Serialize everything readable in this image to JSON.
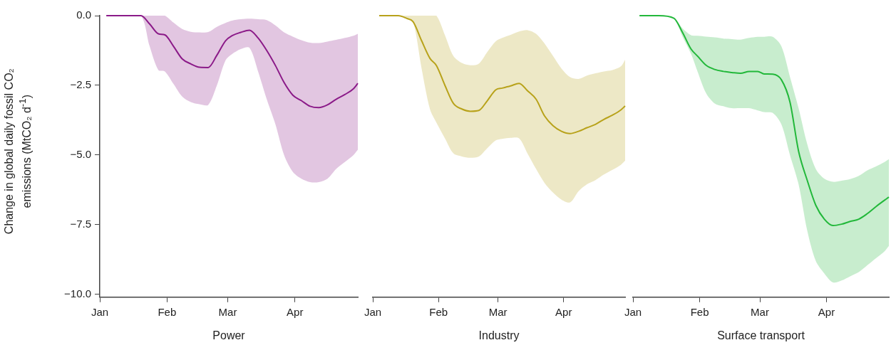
{
  "chart_data": [
    {
      "type": "line",
      "xlabel": "Power",
      "ylabel": "Change in global daily fossil CO₂ emissions (MtCO₂ d$^{-1}$)",
      "xlim": [
        "--01-01",
        "--04-30"
      ],
      "xticks": [
        {
          "value": "--01-01",
          "label": "Jan"
        },
        {
          "value": "--02-01",
          "label": "Feb"
        },
        {
          "value": "--03-01",
          "label": "Mar"
        },
        {
          "value": "--04-01",
          "label": "Apr"
        }
      ],
      "ylim": [
        -10.1,
        0
      ],
      "yticks": [
        {
          "value": 0,
          "label": "0.0"
        },
        {
          "value": -2.5,
          "label": "−2.5"
        },
        {
          "value": -5,
          "label": "−5.0"
        },
        {
          "value": -7.5,
          "label": "−7.5"
        },
        {
          "value": -10,
          "label": "−10.0"
        }
      ],
      "x": [
        "--01-04",
        "--01-13",
        "--01-20",
        "--01-24",
        "--01-28",
        "--01-31",
        "--02-04",
        "--02-08",
        "--02-12",
        "--02-16",
        "--02-20",
        "--02-24",
        "--02-28",
        "--03-03",
        "--03-07",
        "--03-11",
        "--03-15",
        "--03-19",
        "--03-23",
        "--03-27",
        "--03-31",
        "--04-04",
        "--04-08",
        "--04-12",
        "--04-16",
        "--04-20",
        "--04-24",
        "--04-28",
        "--04-30"
      ],
      "series": [
        {
          "color": "#8b1a89",
          "values": [
            0,
            0,
            0,
            -0.3,
            -0.65,
            -0.69,
            -1.1,
            -1.55,
            -1.73,
            -1.85,
            -1.86,
            -1.42,
            -0.9,
            -0.72,
            -0.6,
            -0.52,
            -0.8,
            -1.25,
            -1.79,
            -2.4,
            -2.85,
            -3.05,
            -3.25,
            -3.3,
            -3.2,
            -3.0,
            -2.83,
            -2.62,
            -2.43
          ],
          "upper": [
            0,
            0,
            0,
            0,
            0,
            0,
            -0.25,
            -0.48,
            -0.58,
            -0.6,
            -0.59,
            -0.4,
            -0.26,
            -0.18,
            -0.13,
            -0.11,
            -0.13,
            -0.16,
            -0.35,
            -0.6,
            -0.75,
            -0.88,
            -0.97,
            -0.98,
            -0.93,
            -0.87,
            -0.8,
            -0.72,
            -0.65
          ],
          "lower": [
            0,
            0,
            0,
            -1.1,
            -1.95,
            -2.0,
            -2.45,
            -2.9,
            -3.1,
            -3.18,
            -3.2,
            -2.5,
            -1.6,
            -1.38,
            -1.2,
            -1.15,
            -2.0,
            -3.0,
            -3.9,
            -5.0,
            -5.6,
            -5.85,
            -5.97,
            -5.97,
            -5.85,
            -5.5,
            -5.25,
            -5.0,
            -4.81
          ]
        }
      ]
    },
    {
      "type": "line",
      "xlabel": "Industry",
      "tick_labels": "x",
      "xlim": [
        "--01-01",
        "--04-30"
      ],
      "xticks": [
        {
          "value": "--01-01",
          "label": "Jan"
        },
        {
          "value": "--02-01",
          "label": "Feb"
        },
        {
          "value": "--03-01",
          "label": "Mar"
        },
        {
          "value": "--04-01",
          "label": "Apr"
        }
      ],
      "ylim": [
        -10.1,
        0
      ],
      "x": [
        "--01-04",
        "--01-13",
        "--01-17",
        "--01-20",
        "--01-24",
        "--01-28",
        "--01-31",
        "--02-04",
        "--02-08",
        "--02-12",
        "--02-16",
        "--02-20",
        "--02-24",
        "--02-28",
        "--03-03",
        "--03-07",
        "--03-11",
        "--03-15",
        "--03-19",
        "--03-23",
        "--03-27",
        "--03-31",
        "--04-04",
        "--04-08",
        "--04-12",
        "--04-16",
        "--04-20",
        "--04-24",
        "--04-28",
        "--04-30"
      ],
      "series": [
        {
          "color": "#b8a21a",
          "values": [
            0,
            0,
            -0.1,
            -0.22,
            -0.9,
            -1.54,
            -1.79,
            -2.5,
            -3.15,
            -3.35,
            -3.43,
            -3.4,
            -3.05,
            -2.66,
            -2.6,
            -2.52,
            -2.43,
            -2.7,
            -3.0,
            -3.6,
            -3.95,
            -4.15,
            -4.23,
            -4.15,
            -4.02,
            -3.9,
            -3.72,
            -3.57,
            -3.38,
            -3.24
          ],
          "upper": [
            0,
            0,
            0,
            0,
            0,
            0,
            0,
            -0.7,
            -1.45,
            -1.7,
            -1.78,
            -1.72,
            -1.3,
            -0.92,
            -0.8,
            -0.69,
            -0.57,
            -0.52,
            -0.65,
            -1.0,
            -1.45,
            -1.9,
            -2.2,
            -2.27,
            -2.15,
            -2.07,
            -2.0,
            -1.95,
            -1.82,
            -1.58
          ],
          "lower": [
            0,
            0,
            -0.1,
            -0.22,
            -1.9,
            -3.37,
            -3.84,
            -4.4,
            -4.94,
            -5.05,
            -5.1,
            -5.05,
            -4.75,
            -4.47,
            -4.42,
            -4.38,
            -4.4,
            -4.95,
            -5.5,
            -6.0,
            -6.35,
            -6.6,
            -6.7,
            -6.3,
            -6.05,
            -5.9,
            -5.7,
            -5.53,
            -5.35,
            -5.2
          ]
        }
      ]
    },
    {
      "type": "line",
      "xlabel": "Surface transport",
      "tick_labels": "x",
      "xlim": [
        "--01-01",
        "--04-30"
      ],
      "xticks": [
        {
          "value": "--01-01",
          "label": "Jan"
        },
        {
          "value": "--02-01",
          "label": "Feb"
        },
        {
          "value": "--03-01",
          "label": "Mar"
        },
        {
          "value": "--04-01",
          "label": "Apr"
        }
      ],
      "ylim": [
        -10.1,
        0
      ],
      "x": [
        "--01-04",
        "--01-13",
        "--01-20",
        "--01-24",
        "--01-28",
        "--01-31",
        "--02-04",
        "--02-08",
        "--02-12",
        "--02-16",
        "--02-20",
        "--02-24",
        "--02-28",
        "--03-03",
        "--03-07",
        "--03-11",
        "--03-15",
        "--03-19",
        "--03-23",
        "--03-27",
        "--03-31",
        "--04-04",
        "--04-08",
        "--04-12",
        "--04-16",
        "--04-20",
        "--04-24",
        "--04-28",
        "--04-30"
      ],
      "series": [
        {
          "color": "#22b83a",
          "values": [
            0,
            0,
            -0.09,
            -0.6,
            -1.2,
            -1.45,
            -1.78,
            -1.93,
            -2.0,
            -2.04,
            -2.07,
            -2.0,
            -2.0,
            -2.09,
            -2.1,
            -2.3,
            -3.1,
            -4.86,
            -5.9,
            -6.8,
            -7.3,
            -7.53,
            -7.48,
            -7.38,
            -7.3,
            -7.1,
            -6.85,
            -6.62,
            -6.51
          ],
          "upper": [
            0,
            0,
            -0.09,
            -0.45,
            -0.7,
            -0.72,
            -0.75,
            -0.78,
            -0.82,
            -0.84,
            -0.86,
            -0.8,
            -0.76,
            -0.76,
            -0.76,
            -1.1,
            -2.2,
            -3.32,
            -4.6,
            -5.5,
            -5.85,
            -5.96,
            -5.92,
            -5.86,
            -5.75,
            -5.55,
            -5.41,
            -5.25,
            -5.15
          ],
          "lower": [
            0,
            0,
            -0.09,
            -0.75,
            -1.37,
            -2.0,
            -2.78,
            -3.15,
            -3.25,
            -3.32,
            -3.32,
            -3.32,
            -3.4,
            -3.46,
            -3.49,
            -3.9,
            -5.0,
            -6.05,
            -7.7,
            -8.8,
            -9.25,
            -9.57,
            -9.5,
            -9.35,
            -9.2,
            -8.95,
            -8.7,
            -8.45,
            -8.26
          ]
        }
      ]
    }
  ]
}
